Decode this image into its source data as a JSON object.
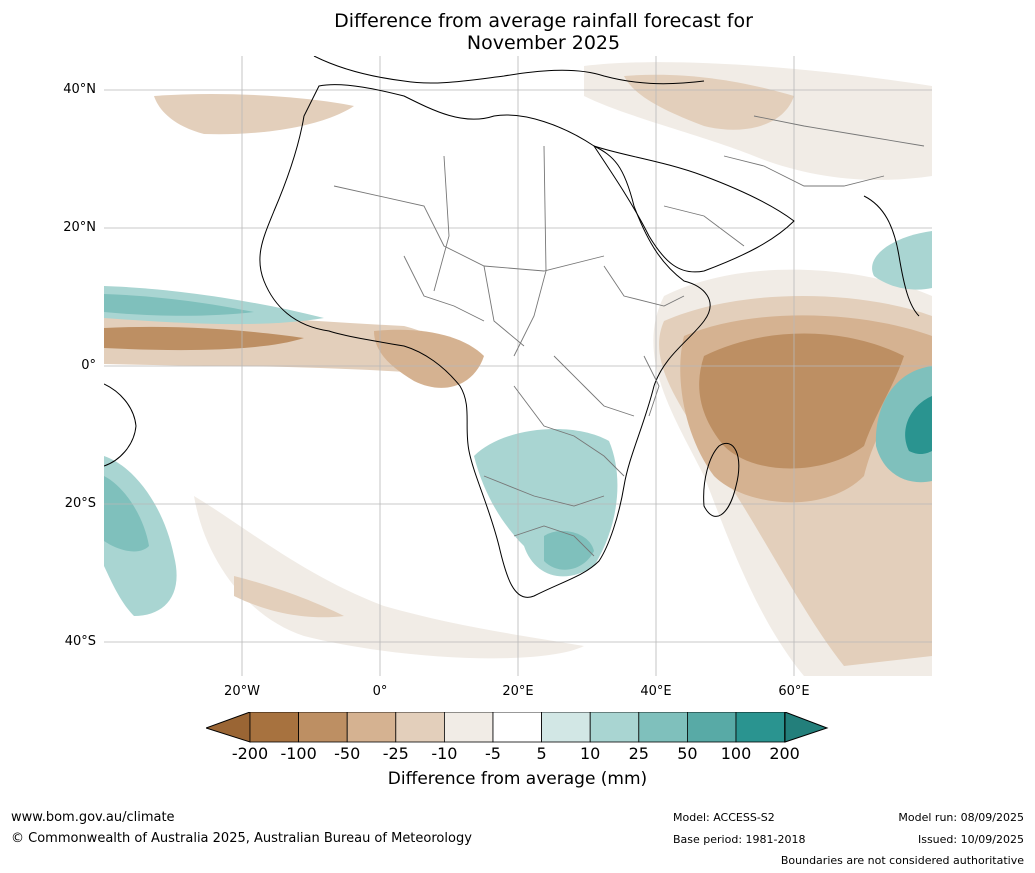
{
  "title_line1": "Difference from average rainfall forecast for",
  "title_line2": "November 2025",
  "lat_labels": [
    "40°N",
    "20°N",
    "0°",
    "20°S",
    "40°S"
  ],
  "lon_labels": [
    "20°W",
    "0°",
    "20°E",
    "40°E",
    "60°E"
  ],
  "colorbar": {
    "label": "Difference from average (mm)",
    "ticks": [
      "-200",
      "-100",
      "-50",
      "-25",
      "-10",
      "-5",
      "5",
      "10",
      "25",
      "50",
      "100",
      "200"
    ],
    "colors": [
      "#a7723f",
      "#bd8f63",
      "#d5b291",
      "#e3cfbb",
      "#f1ece6",
      "#ffffff",
      "#d2e7e5",
      "#a9d5d2",
      "#7fc0bc",
      "#58aaa6",
      "#2a9490"
    ],
    "under_color": "#9a6534",
    "over_color": "#237f7b"
  },
  "footer": {
    "website": "www.bom.gov.au/climate",
    "copyright": "© Commonwealth of Australia 2025, Australian Bureau of Meteorology",
    "model": "Model: ACCESS-S2",
    "base_period": "Base period: 1981-2018",
    "model_run": "Model run: 08/09/2025",
    "issued": "Issued: 10/09/2025",
    "disclaimer": "Boundaries are not considered authoritative"
  }
}
